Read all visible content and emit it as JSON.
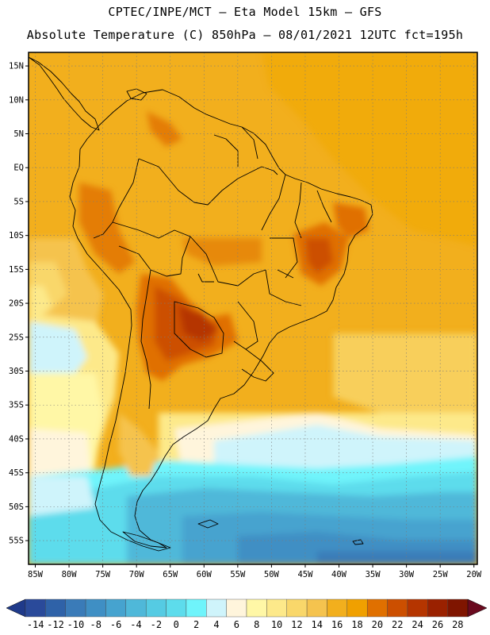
{
  "header": {
    "line1": "CPTEC/INPE/MCT —  Eta Model 15km — GFS",
    "line2": "Absolute Temperature (C) 850hPa — 08/01/2021 12UTC fct=195h"
  },
  "map": {
    "lon_range": [
      -86,
      -19.5
    ],
    "lat_range": [
      -58.5,
      17
    ],
    "lat_ticks": [
      {
        "value": 15,
        "label": "15N"
      },
      {
        "value": 10,
        "label": "10N"
      },
      {
        "value": 5,
        "label": "5N"
      },
      {
        "value": 0,
        "label": "EQ"
      },
      {
        "value": -5,
        "label": "5S"
      },
      {
        "value": -10,
        "label": "10S"
      },
      {
        "value": -15,
        "label": "15S"
      },
      {
        "value": -20,
        "label": "20S"
      },
      {
        "value": -25,
        "label": "25S"
      },
      {
        "value": -30,
        "label": "30S"
      },
      {
        "value": -35,
        "label": "35S"
      },
      {
        "value": -40,
        "label": "40S"
      },
      {
        "value": -45,
        "label": "45S"
      },
      {
        "value": -50,
        "label": "50S"
      },
      {
        "value": -55,
        "label": "55S"
      }
    ],
    "lon_ticks": [
      {
        "value": -85,
        "label": "85W"
      },
      {
        "value": -80,
        "label": "80W"
      },
      {
        "value": -75,
        "label": "75W"
      },
      {
        "value": -70,
        "label": "70W"
      },
      {
        "value": -65,
        "label": "65W"
      },
      {
        "value": -60,
        "label": "60W"
      },
      {
        "value": -55,
        "label": "55W"
      },
      {
        "value": -50,
        "label": "50W"
      },
      {
        "value": -45,
        "label": "45W"
      },
      {
        "value": -40,
        "label": "40W"
      },
      {
        "value": -35,
        "label": "35W"
      },
      {
        "value": -30,
        "label": "30W"
      },
      {
        "value": -25,
        "label": "25W"
      },
      {
        "value": -20,
        "label": "20W"
      }
    ]
  },
  "colorbar": {
    "labels": [
      "-14",
      "-12",
      "-10",
      "-8",
      "-6",
      "-4",
      "-2",
      "0",
      "2",
      "4",
      "6",
      "8",
      "10",
      "12",
      "14",
      "16",
      "18",
      "20",
      "22",
      "24",
      "26",
      "28"
    ],
    "colors": [
      "#2a4a9a",
      "#2f62a8",
      "#3a7bb8",
      "#3f8fc4",
      "#46a3cf",
      "#4fb8d9",
      "#55cbe3",
      "#5ddcec",
      "#6ff4fb",
      "#cff4fb",
      "#fff5dc",
      "#fff7a6",
      "#fde98a",
      "#f9d76a",
      "#f5c34e",
      "#f2af1d",
      "#f0a000",
      "#e07000",
      "#cc4f00",
      "#b53500",
      "#9a2100",
      "#7f1500"
    ],
    "low_color": "#1f3a8a",
    "high_color": "#6a0a1f"
  }
}
